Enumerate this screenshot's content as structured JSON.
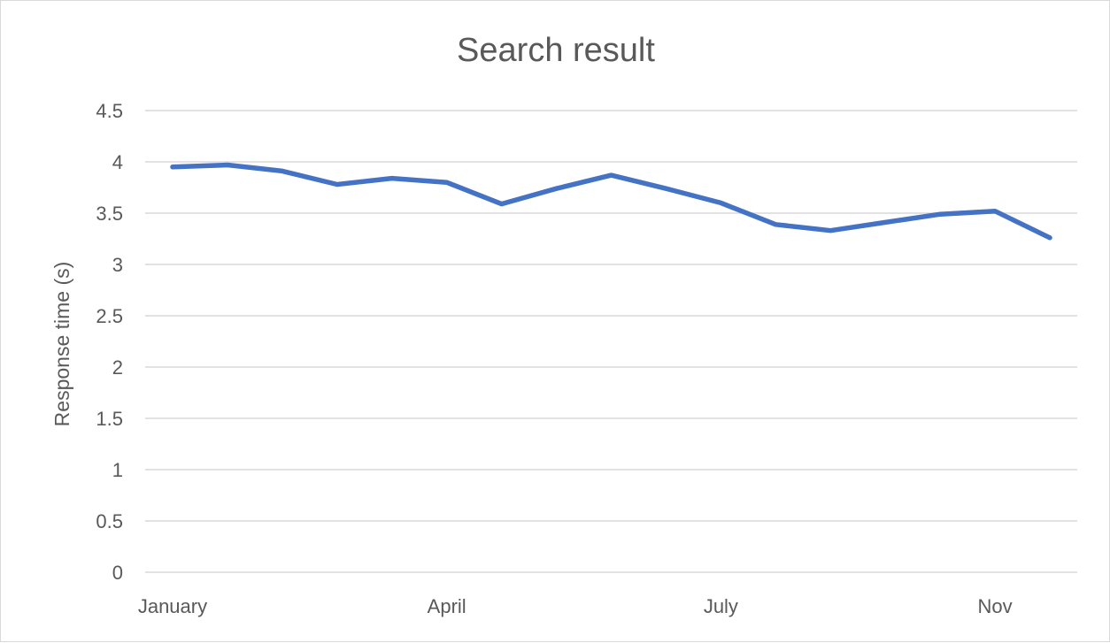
{
  "chart_data": {
    "type": "line",
    "title": "Search result",
    "xlabel": "",
    "ylabel": "Response time (s)",
    "ylim": [
      0,
      4.5
    ],
    "yticks": [
      "0",
      "0.5",
      "1",
      "1.5",
      "2",
      "2.5",
      "3",
      "3.5",
      "4",
      "4.5"
    ],
    "x_tick_labels": [
      {
        "index": 0,
        "label": "January"
      },
      {
        "index": 5,
        "label": "April"
      },
      {
        "index": 10,
        "label": "July"
      },
      {
        "index": 15,
        "label": "Nov"
      }
    ],
    "grid": true,
    "legend": "none",
    "series": [
      {
        "values": [
          3.95,
          3.97,
          3.91,
          3.78,
          3.84,
          3.8,
          3.59,
          3.74,
          3.87,
          3.74,
          3.6,
          3.39,
          3.33,
          3.41,
          3.49,
          3.52,
          3.26
        ],
        "color": "#4472c4"
      }
    ]
  }
}
